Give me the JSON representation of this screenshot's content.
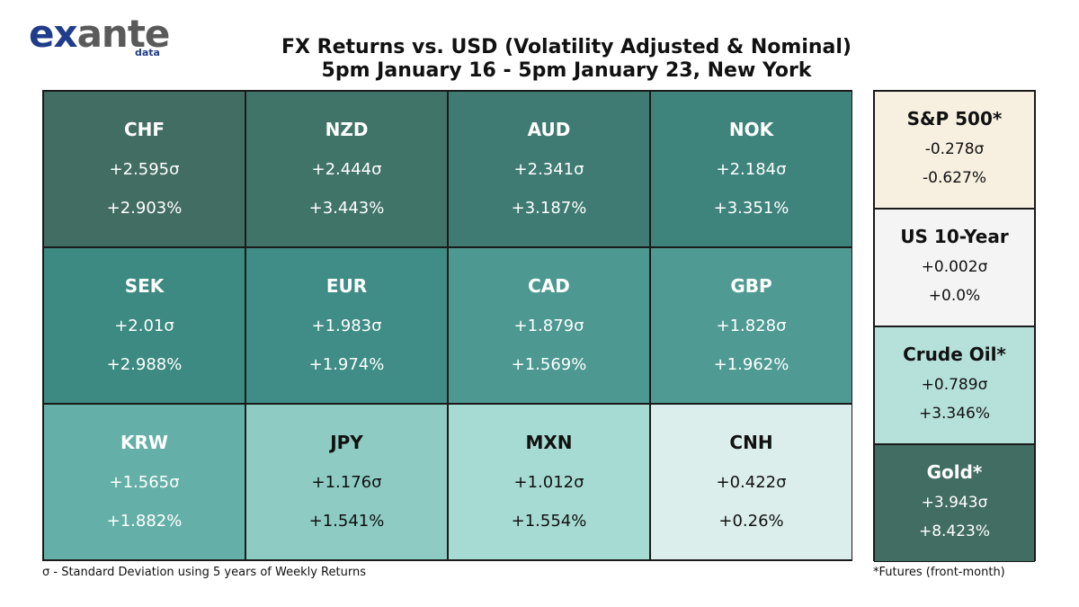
{
  "logo": {
    "word_1": "ex",
    "word_2": "ante",
    "sub": "data"
  },
  "title_line_1": "FX Returns vs. USD (Volatility Adjusted & Nominal)",
  "title_line_2": "5pm January 16 - 5pm January 23, New York",
  "footnote_left": "σ - Standard Deviation using 5 years of Weekly Returns",
  "footnote_right": "*Futures (front-month)",
  "chart_data": [
    {
      "type": "table",
      "title": "FX Returns vs. USD (Volatility Adjusted & Nominal)",
      "subtitle": "5pm January 16 - 5pm January 23, New York",
      "cells": [
        {
          "name": "CHF",
          "sigma_text": "+2.595σ",
          "pct_text": "+2.903%",
          "sigma": 2.595,
          "pct": 2.903,
          "bg": "#426d62",
          "fg": "#ffffff"
        },
        {
          "name": "NZD",
          "sigma_text": "+2.444σ",
          "pct_text": "+3.443%",
          "sigma": 2.444,
          "pct": 3.443,
          "bg": "#417469",
          "fg": "#ffffff"
        },
        {
          "name": "AUD",
          "sigma_text": "+2.341σ",
          "pct_text": "+3.187%",
          "sigma": 2.341,
          "pct": 3.187,
          "bg": "#3f7b72",
          "fg": "#ffffff"
        },
        {
          "name": "NOK",
          "sigma_text": "+2.184σ",
          "pct_text": "+3.351%",
          "sigma": 2.184,
          "pct": 3.351,
          "bg": "#3e847c",
          "fg": "#ffffff"
        },
        {
          "name": "SEK",
          "sigma_text": "+2.01σ",
          "pct_text": "+2.988%",
          "sigma": 2.01,
          "pct": 2.988,
          "bg": "#3c8a82",
          "fg": "#ffffff"
        },
        {
          "name": "EUR",
          "sigma_text": "+1.983σ",
          "pct_text": "+1.974%",
          "sigma": 1.983,
          "pct": 1.974,
          "bg": "#3f8d86",
          "fg": "#ffffff"
        },
        {
          "name": "CAD",
          "sigma_text": "+1.879σ",
          "pct_text": "+1.569%",
          "sigma": 1.879,
          "pct": 1.569,
          "bg": "#4d9992",
          "fg": "#ffffff"
        },
        {
          "name": "GBP",
          "sigma_text": "+1.828σ",
          "pct_text": "+1.962%",
          "sigma": 1.828,
          "pct": 1.962,
          "bg": "#4f9b94",
          "fg": "#ffffff"
        },
        {
          "name": "KRW",
          "sigma_text": "+1.565σ",
          "pct_text": "+1.882%",
          "sigma": 1.565,
          "pct": 1.882,
          "bg": "#64b0a8",
          "fg": "#ffffff"
        },
        {
          "name": "JPY",
          "sigma_text": "+1.176σ",
          "pct_text": "+1.541%",
          "sigma": 1.176,
          "pct": 1.541,
          "bg": "#8dcbc3",
          "fg": "#111111"
        },
        {
          "name": "MXN",
          "sigma_text": "+1.012σ",
          "pct_text": "+1.554%",
          "sigma": 1.012,
          "pct": 1.554,
          "bg": "#a6dbd3",
          "fg": "#111111"
        },
        {
          "name": "CNH",
          "sigma_text": "+0.422σ",
          "pct_text": "+0.26%",
          "sigma": 0.422,
          "pct": 0.26,
          "bg": "#dbeeeb",
          "fg": "#111111"
        }
      ]
    },
    {
      "type": "table",
      "cells": [
        {
          "name": "S&P 500*",
          "sigma_text": "-0.278σ",
          "pct_text": "-0.627%",
          "sigma": -0.278,
          "pct": -0.627,
          "bg": "#f7f0e1",
          "fg": "#111111"
        },
        {
          "name": "US 10-Year",
          "sigma_text": "+0.002σ",
          "pct_text": "+0.0%",
          "sigma": 0.002,
          "pct": 0.0,
          "bg": "#f4f4f4",
          "fg": "#111111"
        },
        {
          "name": "Crude Oil*",
          "sigma_text": "+0.789σ",
          "pct_text": "+3.346%",
          "sigma": 0.789,
          "pct": 3.346,
          "bg": "#b5e1da",
          "fg": "#111111"
        },
        {
          "name": "Gold*",
          "sigma_text": "+3.943σ",
          "pct_text": "+8.423%",
          "sigma": 3.943,
          "pct": 8.423,
          "bg": "#426d62",
          "fg": "#ffffff"
        }
      ]
    }
  ]
}
